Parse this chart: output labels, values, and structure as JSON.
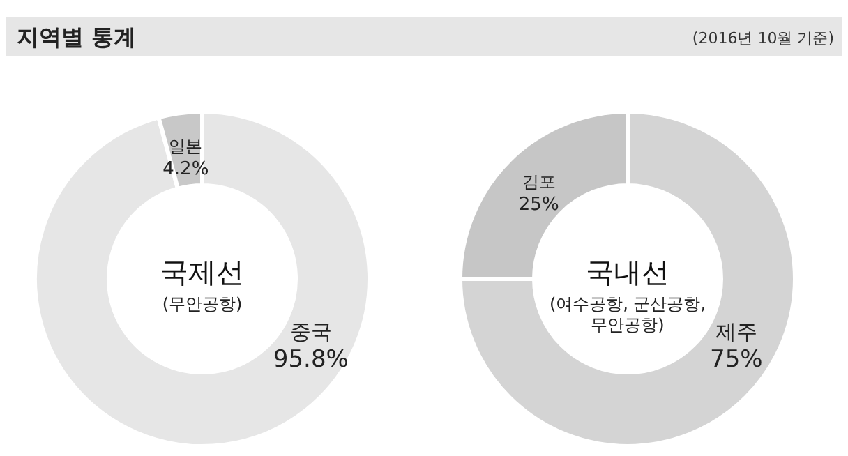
{
  "chart_data": [
    {
      "type": "other",
      "title": "지역별 통계",
      "subtitle": "(2016년 10월 기준)"
    },
    {
      "type": "donut",
      "title": "국제선",
      "subtitle": "(무안공항)",
      "categories": [
        "중국",
        "일본"
      ],
      "values": [
        95.8,
        4.2
      ],
      "colors": [
        "#e6e6e6",
        "#c8c8c8"
      ],
      "value_labels": [
        "95.8%",
        "4.2%"
      ]
    },
    {
      "type": "donut",
      "title": "국내선",
      "subtitle": "(여수공항, 군산공항, 무안공항)",
      "categories": [
        "제주",
        "김포"
      ],
      "values": [
        75,
        25
      ],
      "colors": [
        "#d4d4d4",
        "#c6c6c6"
      ],
      "value_labels": [
        "75%",
        "25%"
      ]
    }
  ]
}
